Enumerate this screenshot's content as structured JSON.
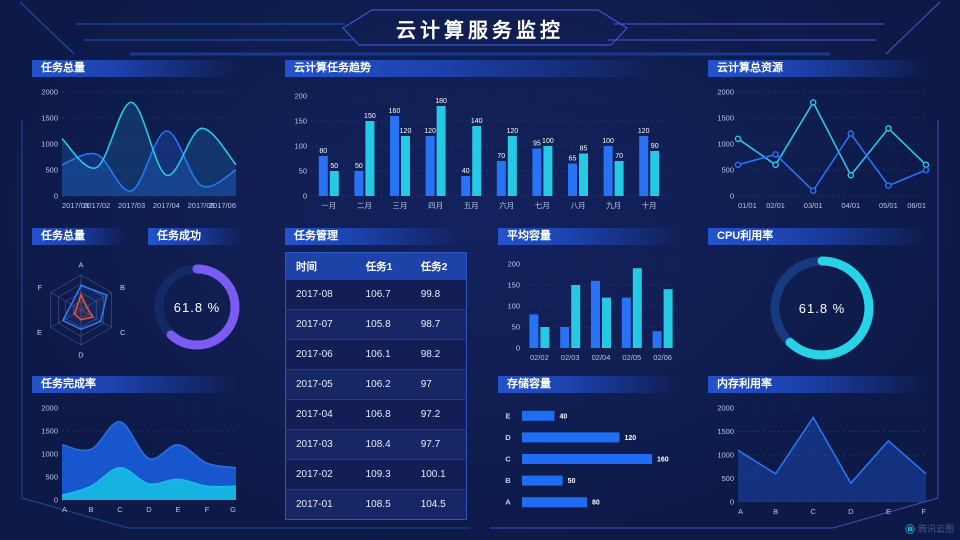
{
  "header": {
    "title": "云计算服务监控"
  },
  "watermark": {
    "label": "腾讯云图"
  },
  "colors": {
    "blue": "#2873f5",
    "cyan": "#26c9e3",
    "purple": "#7b5bf2",
    "orange": "#f4502a"
  },
  "chart_data": [
    {
      "id": "task-total-line",
      "type": "line",
      "title": "任务总量",
      "x": [
        "2017/01",
        "2017/02",
        "2017/03",
        "2017/04",
        "2017/05",
        "2017/06"
      ],
      "ylim": [
        0,
        2000
      ],
      "grid": true,
      "series": [
        {
          "name": "series-blue",
          "color": "#2873f5",
          "smooth": true,
          "fill": "rgba(35,90,220,0.30)",
          "values": [
            600,
            800,
            100,
            1250,
            200,
            500
          ]
        },
        {
          "name": "series-cyan",
          "color": "#26c9e3",
          "smooth": true,
          "fill": "rgba(30,150,215,0.20)",
          "values": [
            1100,
            550,
            1800,
            400,
            1300,
            600
          ]
        }
      ]
    },
    {
      "id": "cloud-task-trend",
      "type": "bar",
      "title": "云计算任务趋势",
      "categories": [
        "一月",
        "二月",
        "三月",
        "四月",
        "五月",
        "六月",
        "七月",
        "八月",
        "九月",
        "十月"
      ],
      "ylim": [
        0,
        200
      ],
      "grid": true,
      "show_values": true,
      "series": [
        {
          "name": "series-blue",
          "color": "#2873f5",
          "values": [
            80,
            50,
            160,
            120,
            40,
            70,
            95,
            65,
            100,
            120
          ]
        },
        {
          "name": "series-cyan",
          "color": "#26c9e3",
          "values": [
            50,
            150,
            120,
            180,
            140,
            120,
            100,
            85,
            70,
            90
          ]
        }
      ]
    },
    {
      "id": "cloud-total-resources",
      "type": "line",
      "title": "云计算总资源",
      "x": [
        "01/01",
        "02/01",
        "03/01",
        "04/01",
        "05/01",
        "06/01"
      ],
      "ylim": [
        0,
        2000
      ],
      "grid": true,
      "series": [
        {
          "name": "series-cyan",
          "color": "#26c9e3",
          "markers": true,
          "values": [
            1100,
            600,
            1800,
            400,
            1300,
            600
          ]
        },
        {
          "name": "series-blue",
          "color": "#2873f5",
          "markers": true,
          "values": [
            600,
            800,
            100,
            1200,
            200,
            500
          ]
        }
      ]
    },
    {
      "id": "task-total-radar",
      "type": "radar",
      "title": "任务总量",
      "axes": [
        "A",
        "B",
        "C",
        "D",
        "E",
        "F"
      ],
      "max": 100,
      "series": [
        {
          "name": "series-blue",
          "color": "#2e7cf2",
          "values": [
            70,
            85,
            65,
            55,
            60,
            32
          ]
        },
        {
          "name": "series-orange",
          "color": "#f4502a",
          "values": [
            45,
            18,
            40,
            28,
            22,
            14
          ]
        }
      ]
    },
    {
      "id": "task-success-gauge",
      "type": "donut",
      "title": "任务成功",
      "value": 61.8,
      "label": "61.8 %",
      "color": "#7b5bf2",
      "track": "#142a66"
    },
    {
      "id": "task-management",
      "type": "table",
      "title": "任务管理",
      "headers": [
        "时间",
        "任务1",
        "任务2"
      ],
      "rows": [
        [
          "2017-08",
          "106.7",
          "99.8"
        ],
        [
          "2017-07",
          "105.8",
          "98.7"
        ],
        [
          "2017-06",
          "106.1",
          "98.2"
        ],
        [
          "2017-05",
          "106.2",
          "97"
        ],
        [
          "2017-04",
          "106.8",
          "97.2"
        ],
        [
          "2017-03",
          "108.4",
          "97.7"
        ],
        [
          "2017-02",
          "109.3",
          "100.1"
        ],
        [
          "2017-01",
          "108.5",
          "104.5"
        ]
      ]
    },
    {
      "id": "average-capacity",
      "type": "bar",
      "title": "平均容量",
      "categories": [
        "02/02",
        "02/03",
        "02/04",
        "02/05",
        "02/06"
      ],
      "ylim": [
        0,
        200
      ],
      "grid": true,
      "show_values": false,
      "series": [
        {
          "name": "series-blue",
          "color": "#2873f5",
          "values": [
            80,
            50,
            160,
            120,
            40
          ]
        },
        {
          "name": "series-cyan",
          "color": "#26c9e3",
          "values": [
            50,
            150,
            120,
            190,
            140
          ]
        }
      ]
    },
    {
      "id": "cpu-utilization-gauge",
      "type": "donut",
      "title": "CPU利用率",
      "value": 61.8,
      "label": "61.8 %",
      "color": "#27d3e6",
      "track": "#17397e"
    },
    {
      "id": "task-completion-rate",
      "type": "area",
      "title": "任务完成率",
      "x": [
        "A",
        "B",
        "C",
        "D",
        "E",
        "F",
        "G"
      ],
      "ylim": [
        0,
        2000
      ],
      "grid": true,
      "series": [
        {
          "name": "series-blue",
          "color": "#2a6fe0",
          "smooth": true,
          "fill": "#1856cd",
          "values": [
            1200,
            1100,
            1700,
            900,
            1200,
            800,
            700
          ]
        },
        {
          "name": "series-cyan",
          "color": "#19bbe8",
          "smooth": true,
          "fill": "#16b2e2",
          "values": [
            100,
            300,
            700,
            350,
            450,
            300,
            300
          ]
        }
      ]
    },
    {
      "id": "storage-capacity",
      "type": "hbar",
      "title": "存储容量",
      "categories": [
        "E",
        "D",
        "C",
        "B",
        "A"
      ],
      "values": [
        40,
        120,
        160,
        50,
        80
      ],
      "xmax": 160,
      "color": "#1f6df5"
    },
    {
      "id": "memory-utilization",
      "type": "line",
      "title": "内存利用率",
      "x": [
        "A",
        "B",
        "C",
        "D",
        "E",
        "F"
      ],
      "ylim": [
        0,
        2000
      ],
      "grid": true,
      "series": [
        {
          "name": "series-blue",
          "color": "#2a74f0",
          "fill": "rgba(35,95,225,0.35)",
          "values": [
            1100,
            600,
            1800,
            400,
            1300,
            600
          ]
        }
      ]
    }
  ]
}
